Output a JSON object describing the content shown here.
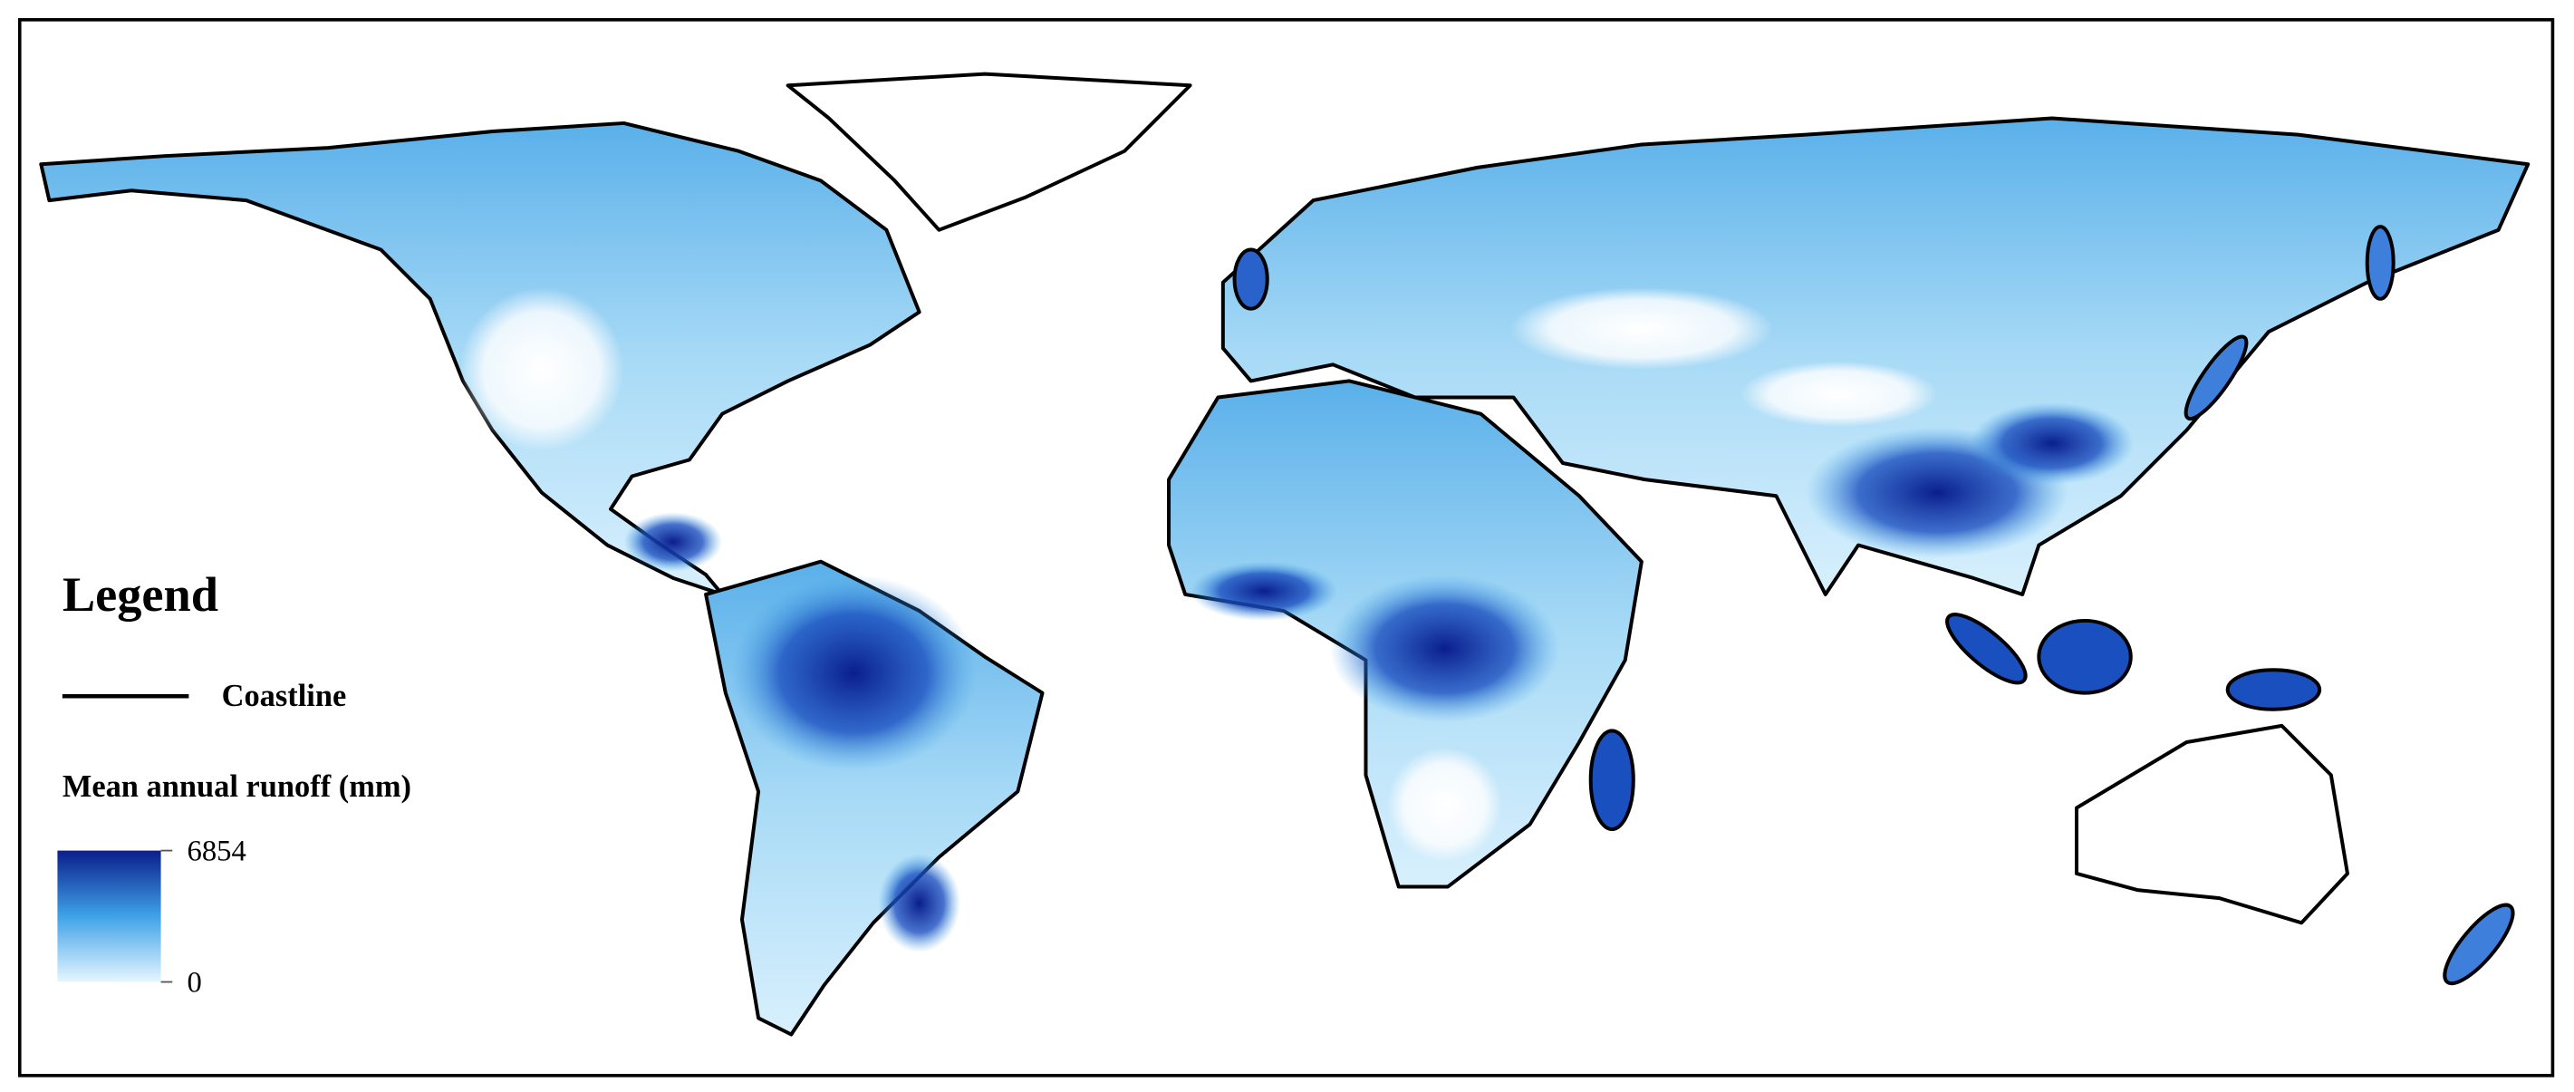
{
  "legend": {
    "title": "Legend",
    "coastline_label": "Coastline",
    "colorbar": {
      "title": "Mean annual runoff (mm)",
      "min": 0,
      "max": 6854,
      "colors": [
        "#e6f6ff",
        "#3fa2e8",
        "#0a1e8c"
      ]
    }
  }
}
